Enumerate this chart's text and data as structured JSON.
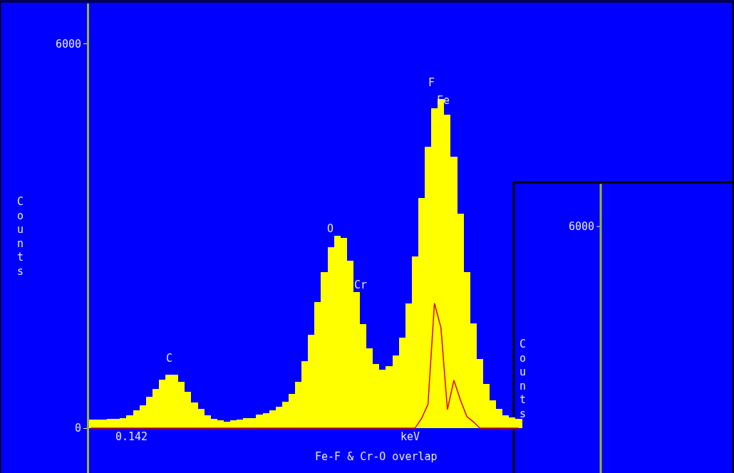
{
  "chart_data": [
    {
      "type": "bar",
      "categories": [
        null,
        null,
        null,
        null,
        null,
        null,
        null,
        null,
        null,
        null,
        null,
        null,
        null,
        null,
        null,
        null,
        null,
        null,
        null,
        null,
        null,
        null,
        null,
        null,
        null,
        null,
        null,
        null,
        null,
        null,
        null,
        null,
        null,
        null,
        null,
        null,
        null,
        null,
        null,
        null,
        null,
        null,
        null,
        null,
        null,
        null,
        null,
        null,
        null,
        null,
        null,
        null,
        null,
        null,
        null,
        null,
        null,
        null,
        null,
        null,
        null,
        null,
        null,
        null,
        null,
        null,
        null
      ],
      "series": [
        {
          "color": "#ffff00",
          "values": [
            130,
            130,
            130,
            150,
            150,
            160,
            200,
            280,
            360,
            490,
            610,
            760,
            840,
            830,
            720,
            570,
            400,
            300,
            200,
            150,
            120,
            100,
            120,
            130,
            160,
            160,
            210,
            230,
            280,
            340,
            410,
            540,
            720,
            1050,
            1460,
            1970,
            2440,
            2830,
            3000,
            2970,
            2610,
            2120,
            1630,
            1250,
            1000,
            910,
            970,
            1130,
            1410,
            1950,
            2680,
            3590,
            4390,
            5000,
            5140,
            4900,
            4240,
            3350,
            2440,
            1640,
            1080,
            690,
            430,
            300,
            200,
            170,
            150
          ]
        },
        {
          "type": "line",
          "color": "#e00000",
          "values": [
            0,
            0,
            0,
            0,
            0,
            0,
            0,
            0,
            0,
            0,
            0,
            0,
            0,
            0,
            0,
            0,
            0,
            0,
            0,
            0,
            0,
            0,
            0,
            0,
            0,
            0,
            0,
            0,
            0,
            0,
            0,
            0,
            0,
            0,
            0,
            0,
            0,
            0,
            0,
            0,
            0,
            0,
            0,
            0,
            0,
            0,
            0,
            0,
            0,
            0,
            0,
            150,
            370,
            1950,
            1570,
            290,
            750,
            440,
            180,
            100,
            0,
            0,
            0,
            0,
            0,
            0,
            0
          ]
        }
      ],
      "ylim": [
        -700,
        6630
      ],
      "yticks": [
        0,
        6000
      ],
      "tick_labels": "y",
      "ylabel": "Counts",
      "xlabel": "keV",
      "annotations": [
        "C",
        "O",
        "Cr",
        "F",
        "Fe",
        "0.142",
        "Fe-F & Cr-O overlap"
      ]
    },
    {
      "type": "other",
      "ylabel": "Counts",
      "annotations": [
        "6000"
      ]
    }
  ]
}
